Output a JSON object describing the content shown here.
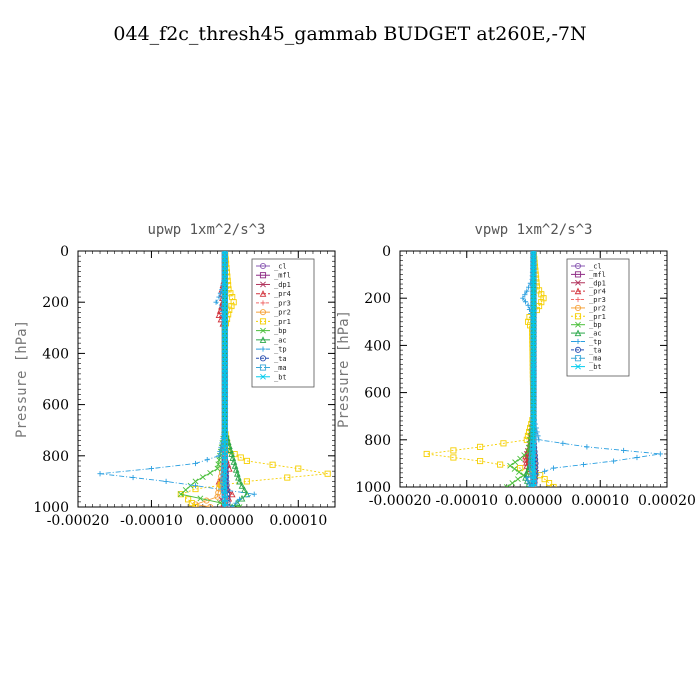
{
  "title": "044_f2c_thresh45_gammab  BUDGET at260E,-7N",
  "chart_data": [
    {
      "type": "line",
      "title": "upwp   1xm^2/s^3",
      "ylabel": "Pressure [hPa]",
      "xlabel": "",
      "xlim": [
        -0.0002,
        0.00015
      ],
      "ylim": [
        1000,
        0
      ],
      "xticks": [
        -0.0002,
        -0.0001,
        0.0,
        0.0001
      ],
      "xtick_labels": [
        "-0.00020",
        "-0.00010",
        "0.00000",
        "0.00010"
      ],
      "yticks": [
        0,
        200,
        400,
        600,
        800,
        1000
      ],
      "ytick_labels": [
        "0",
        "200",
        "400",
        "600",
        "800",
        "1000"
      ],
      "legend": [
        "_cl",
        "_mfl",
        "_dp1",
        "_pr4",
        "_pr3",
        "_pr2",
        "_pr1",
        "_bp",
        "_ac",
        "_tp",
        "_ta",
        "_ma",
        "_bt"
      ],
      "legend_position": "top-right",
      "series": [
        {
          "name": "_cl",
          "color": "#8a5ab3",
          "p": [
            0,
            200,
            400,
            600,
            800,
            1000
          ],
          "values": [
            0,
            0,
            0,
            0,
            0,
            0
          ]
        },
        {
          "name": "_mfl",
          "color": "#8e2a84",
          "p": [
            0,
            200,
            400,
            600,
            800,
            1000
          ],
          "values": [
            0,
            0,
            0,
            0,
            0,
            0
          ]
        },
        {
          "name": "_dp1",
          "color": "#b0305a",
          "p": [
            0,
            200,
            400,
            600,
            800,
            900,
            940,
            970,
            1000
          ],
          "values": [
            0,
            0,
            0,
            0,
            0,
            -3e-06,
            4e-06,
            -5e-06,
            2e-06
          ]
        },
        {
          "name": "_pr4",
          "color": "#d2303a",
          "p": [
            0,
            100,
            150,
            200,
            250,
            300,
            700,
            800,
            850,
            900,
            950,
            1000
          ],
          "values": [
            0,
            0,
            -4e-06,
            -3e-06,
            -8e-06,
            0,
            0,
            0,
            6e-06,
            -8e-06,
            1e-05,
            -4e-06
          ]
        },
        {
          "name": "_pr3",
          "color": "#f06a6a",
          "p": [
            0,
            200,
            400,
            600,
            800,
            900,
            1000
          ],
          "values": [
            0,
            0,
            0,
            0,
            0,
            -2e-06,
            3e-06
          ]
        },
        {
          "name": "_pr2",
          "color": "#f6a23a",
          "p": [
            0,
            200,
            400,
            600,
            800,
            960,
            990,
            1000
          ],
          "values": [
            0,
            0,
            0,
            0,
            0,
            -1e-05,
            -4e-05,
            -2e-05
          ]
        },
        {
          "name": "_pr1",
          "color": "#f5cf00",
          "p": [
            0,
            150,
            180,
            200,
            230,
            300,
            700,
            780,
            820,
            850,
            870,
            900,
            930,
            950,
            970,
            1000
          ],
          "values": [
            0,
            5e-06,
            1e-05,
            1.2e-05,
            6e-06,
            0,
            0,
            5e-06,
            3e-05,
            0.0001,
            0.00014,
            3e-05,
            -4e-05,
            -6e-05,
            -5e-05,
            -4e-05
          ]
        },
        {
          "name": "_bp",
          "color": "#4bbf3b",
          "p": [
            0,
            700,
            850,
            900,
            950,
            1000
          ],
          "values": [
            0,
            0,
            -1e-05,
            -4e-05,
            -6e-05,
            2e-05
          ]
        },
        {
          "name": "_ac",
          "color": "#2aa84a",
          "p": [
            0,
            700,
            900,
            950,
            1000
          ],
          "values": [
            0,
            0,
            2e-05,
            3e-05,
            1e-05
          ]
        },
        {
          "name": "_tp",
          "color": "#2a9fe0",
          "p": [
            0,
            100,
            150,
            180,
            200,
            220,
            300,
            700,
            800,
            830,
            850,
            870,
            900,
            950,
            970,
            1000
          ],
          "values": [
            0,
            0,
            -4e-06,
            -8e-06,
            -1.2e-05,
            -4e-06,
            0,
            0,
            -8e-06,
            -4e-05,
            -0.0001,
            -0.00017,
            -8e-05,
            4e-05,
            2e-05,
            1e-05
          ]
        },
        {
          "name": "_ta",
          "color": "#2a4fb0",
          "p": [
            0,
            200,
            400,
            600,
            800,
            900,
            1000
          ],
          "values": [
            0,
            0,
            0,
            0,
            0,
            2e-06,
            4e-06
          ]
        },
        {
          "name": "_ma",
          "color": "#3aa8d8",
          "p": [
            0,
            200,
            400,
            600,
            800,
            900,
            1000
          ],
          "values": [
            0,
            0,
            0,
            0,
            0,
            -2e-06,
            1e-06
          ]
        },
        {
          "name": "_bt",
          "color": "#00ccee",
          "p": [
            0,
            200,
            400,
            600,
            800,
            1000
          ],
          "values": [
            0,
            0,
            0,
            0,
            0,
            0
          ]
        }
      ]
    },
    {
      "type": "line",
      "title": "vpwp   1xm^2/s^3",
      "ylabel": "Pressure [hPa]",
      "xlabel": "",
      "xlim": [
        -0.0002,
        0.0002
      ],
      "ylim": [
        1000,
        0
      ],
      "xticks": [
        -0.0002,
        -0.0001,
        0.0,
        0.0001,
        0.0002
      ],
      "xtick_labels": [
        "-0.00020",
        "-0.00010",
        "0.00000",
        "0.00010",
        "0.00020"
      ],
      "yticks": [
        0,
        200,
        400,
        600,
        800,
        1000
      ],
      "ytick_labels": [
        "0",
        "200",
        "400",
        "600",
        "800",
        "1000"
      ],
      "legend": [
        "_cl",
        "_mfl",
        "_dp1",
        "_pr4",
        "_pr3",
        "_pr2",
        "_pr1",
        "_bp",
        "_ac",
        "_tp",
        "_ta",
        "_ma",
        "_bt"
      ],
      "legend_position": "top-right",
      "series": [
        {
          "name": "_cl",
          "color": "#8a5ab3",
          "p": [
            0,
            200,
            400,
            600,
            800,
            1000
          ],
          "values": [
            0,
            0,
            0,
            0,
            0,
            0
          ]
        },
        {
          "name": "_mfl",
          "color": "#8e2a84",
          "p": [
            0,
            200,
            400,
            600,
            800,
            1000
          ],
          "values": [
            0,
            0,
            0,
            0,
            0,
            0
          ]
        },
        {
          "name": "_dp1",
          "color": "#b0305a",
          "p": [
            0,
            700,
            820,
            860,
            900,
            940,
            1000
          ],
          "values": [
            0,
            0,
            -5e-06,
            -1e-05,
            -8e-06,
            4e-06,
            0
          ]
        },
        {
          "name": "_pr4",
          "color": "#d2303a",
          "p": [
            0,
            700,
            830,
            870,
            910,
            950,
            1000
          ],
          "values": [
            0,
            0,
            -6e-06,
            -1.2e-05,
            -1e-05,
            2e-06,
            0
          ]
        },
        {
          "name": "_pr3",
          "color": "#f06a6a",
          "p": [
            0,
            200,
            400,
            600,
            800,
            900,
            1000
          ],
          "values": [
            0,
            0,
            0,
            0,
            0,
            -2e-06,
            0
          ]
        },
        {
          "name": "_pr2",
          "color": "#f6a23a",
          "p": [
            0,
            200,
            400,
            600,
            800,
            900,
            1000
          ],
          "values": [
            0,
            0,
            0,
            0,
            0,
            2e-06,
            0
          ]
        },
        {
          "name": "_pr1",
          "color": "#f5cf00",
          "p": [
            0,
            150,
            200,
            250,
            280,
            300,
            330,
            700,
            800,
            830,
            860,
            890,
            920,
            950,
            1000
          ],
          "values": [
            0,
            5e-06,
            1.5e-05,
            5e-06,
            -6e-06,
            -8e-06,
            -2e-06,
            0,
            -1e-05,
            -8e-05,
            -0.00016,
            -8e-05,
            -2e-05,
            1e-05,
            3e-05
          ]
        },
        {
          "name": "_bp",
          "color": "#4bbf3b",
          "p": [
            0,
            700,
            850,
            880,
            910,
            950,
            1000
          ],
          "values": [
            0,
            0,
            -8e-06,
            -2e-05,
            -3.5e-05,
            -1.5e-05,
            -4e-05
          ]
        },
        {
          "name": "_ac",
          "color": "#2aa84a",
          "p": [
            0,
            700,
            900,
            960,
            1000
          ],
          "values": [
            0,
            0,
            -5e-06,
            -1.2e-05,
            -4e-06
          ]
        },
        {
          "name": "_tp",
          "color": "#2a9fe0",
          "p": [
            0,
            120,
            170,
            200,
            230,
            300,
            700,
            800,
            830,
            860,
            890,
            920,
            960,
            1000
          ],
          "values": [
            0,
            -2e-06,
            -1e-05,
            -1.6e-05,
            -8e-06,
            0,
            0,
            8e-06,
            8e-05,
            0.00019,
            0.00012,
            3e-05,
            -1e-05,
            -5e-06
          ]
        },
        {
          "name": "_ta",
          "color": "#2a4fb0",
          "p": [
            0,
            200,
            400,
            600,
            800,
            900,
            1000
          ],
          "values": [
            0,
            0,
            0,
            0,
            0,
            3e-06,
            1e-06
          ]
        },
        {
          "name": "_ma",
          "color": "#3aa8d8",
          "p": [
            0,
            200,
            400,
            600,
            800,
            900,
            1000
          ],
          "values": [
            0,
            0,
            0,
            0,
            0,
            -3e-06,
            1e-06
          ]
        },
        {
          "name": "_bt",
          "color": "#00ccee",
          "p": [
            0,
            200,
            400,
            600,
            800,
            1000
          ],
          "values": [
            0,
            0,
            0,
            0,
            0,
            0
          ]
        }
      ]
    }
  ]
}
